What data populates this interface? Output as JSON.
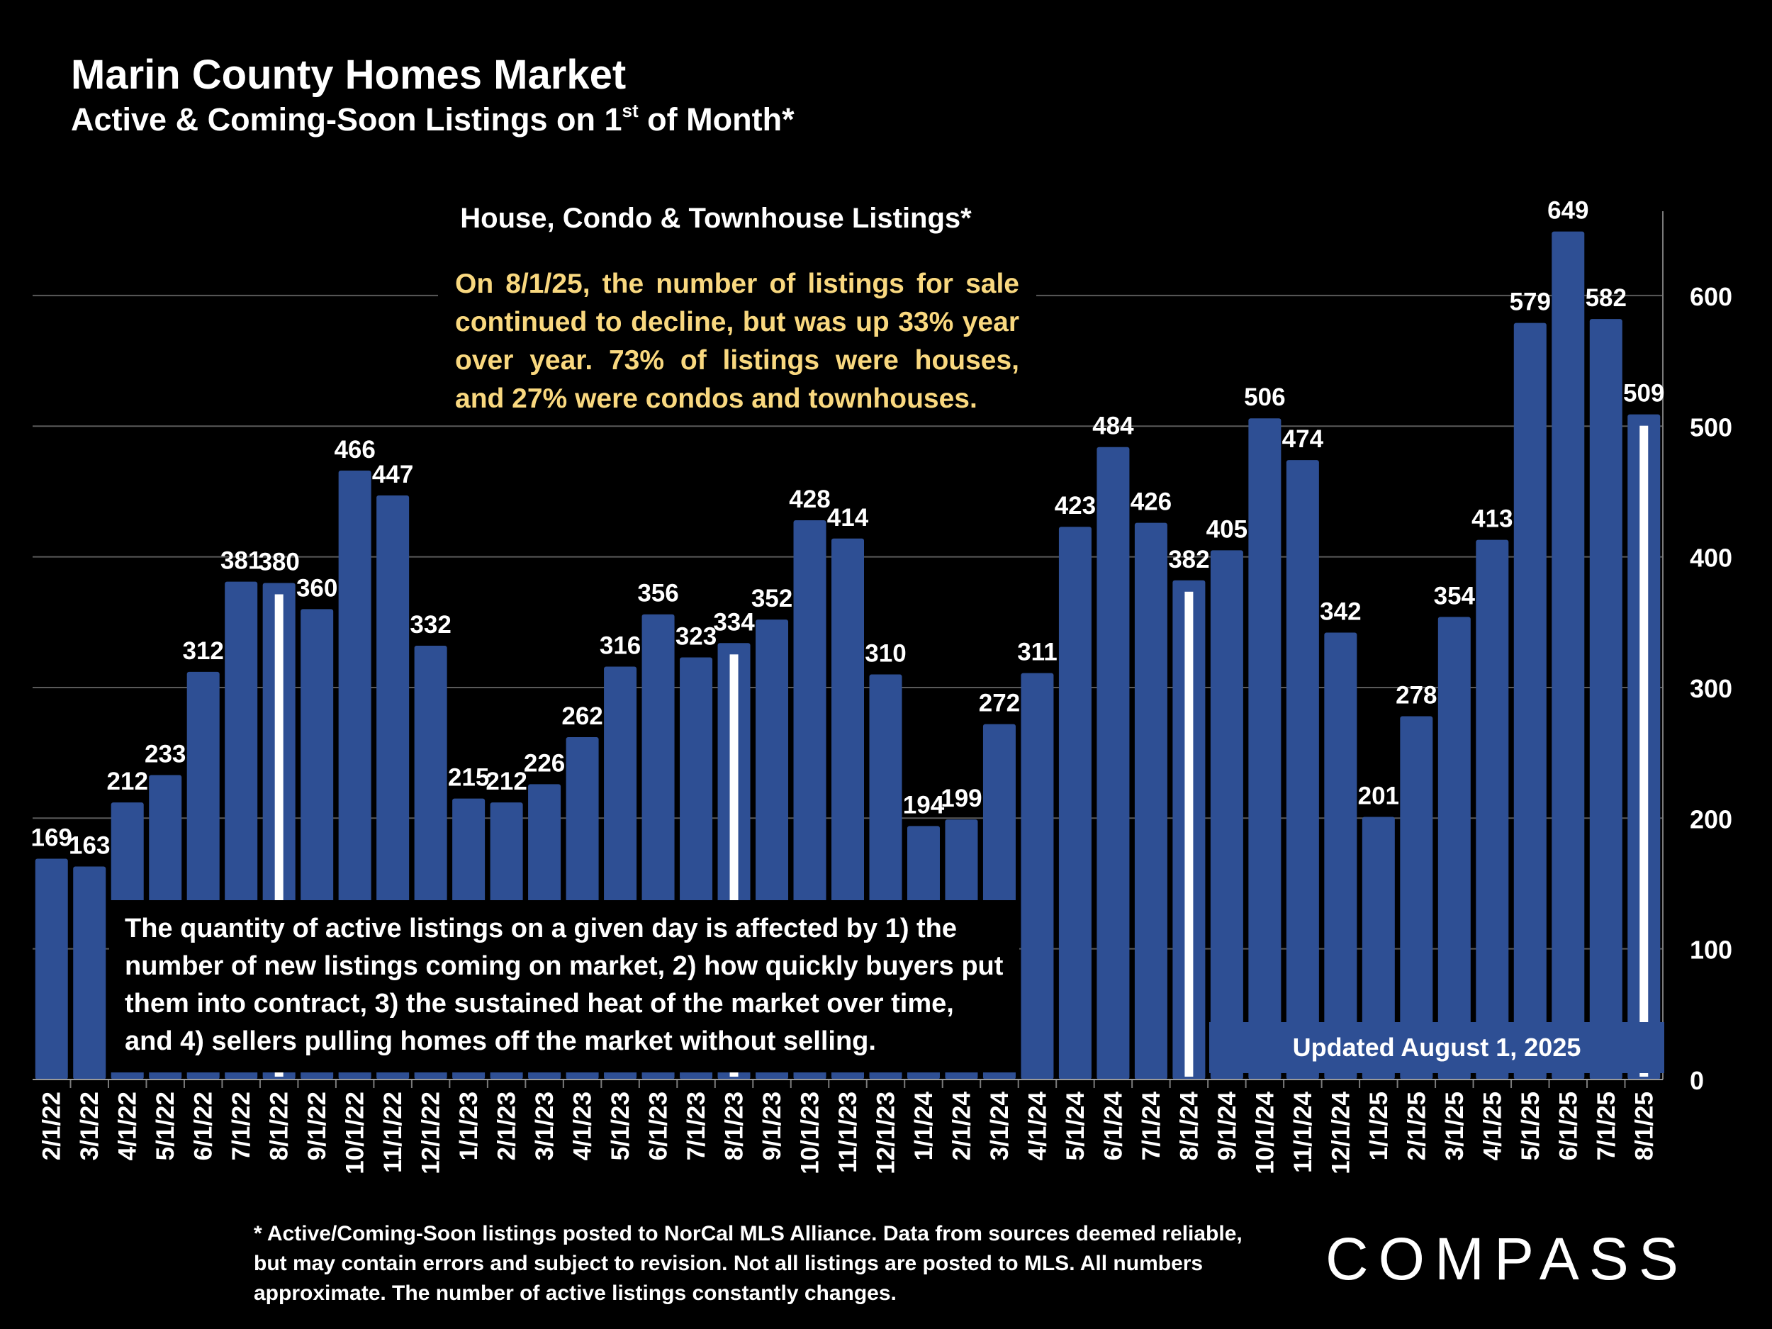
{
  "header": {
    "title": "Marin County Homes Market",
    "subtitle_pre": "Active & Coming-Soon Listings on 1",
    "subtitle_sup": "st",
    "subtitle_post": " of Month*"
  },
  "chart_data": {
    "type": "bar",
    "title": "House, Condo & Townhouse Listings*",
    "categories": [
      "2/1/22",
      "3/1/22",
      "4/1/22",
      "5/1/22",
      "6/1/22",
      "7/1/22",
      "8/1/22",
      "9/1/22",
      "10/1/22",
      "11/1/22",
      "12/1/22",
      "1/1/23",
      "2/1/23",
      "3/1/23",
      "4/1/23",
      "5/1/23",
      "6/1/23",
      "7/1/23",
      "8/1/23",
      "9/1/23",
      "10/1/23",
      "11/1/23",
      "12/1/23",
      "1/1/24",
      "2/1/24",
      "3/1/24",
      "4/1/24",
      "5/1/24",
      "6/1/24",
      "7/1/24",
      "8/1/24",
      "9/1/24",
      "10/1/24",
      "11/1/24",
      "12/1/24",
      "1/1/25",
      "2/1/25",
      "3/1/25",
      "4/1/25",
      "5/1/25",
      "6/1/25",
      "7/1/25",
      "8/1/25"
    ],
    "values": [
      169,
      163,
      212,
      233,
      312,
      381,
      380,
      360,
      466,
      447,
      332,
      215,
      212,
      226,
      262,
      316,
      356,
      323,
      334,
      352,
      428,
      414,
      310,
      194,
      199,
      272,
      311,
      423,
      484,
      426,
      382,
      405,
      506,
      474,
      342,
      201,
      278,
      354,
      413,
      579,
      649,
      582,
      509
    ],
    "data_labels": [
      "169",
      "163",
      "212",
      "233",
      "312",
      "381",
      "380",
      "360",
      "466",
      "447",
      "332",
      "215",
      "212",
      "226",
      "262",
      "316",
      "356",
      "323",
      "334",
      "352",
      "428",
      "414",
      "310",
      "194",
      "199",
      "272",
      "311",
      "423",
      "484",
      "426",
      "382",
      "405",
      "506",
      "474",
      "342",
      "201",
      "278",
      "354",
      "413",
      "579",
      "649",
      "582",
      "509"
    ],
    "highlighted_categories": [
      "8/1/22",
      "8/1/23",
      "8/1/24",
      "8/1/25"
    ],
    "y_ticks": [
      "0",
      "100",
      "200",
      "300",
      "400",
      "500",
      "600"
    ],
    "ylim": [
      0,
      660
    ],
    "y_axis_side": "right",
    "grid": true,
    "bar_color": "#2e4f94",
    "highlight_color": "#ffffff",
    "background_color": "#000000",
    "annotation_color": "#f9d87f"
  },
  "annotations": {
    "market_note": "On 8/1/25, the number of listings for sale continued to decline, but was up 33% year over year. 73% of listings were houses, and 27% were condos and townhouses.",
    "explanation": "The quantity of active listings on a given day is affected by 1) the number of new listings coming on market, 2) how quickly buyers put them into contract, 3) the sustained heat of the market over time, and 4) sellers pulling homes off the market without selling.",
    "updated": "Updated August 1, 2025"
  },
  "footer": {
    "footnote": "* Active/Coming-Soon listings posted to NorCal MLS Alliance.  Data from sources deemed reliable, but may contain errors and subject to revision.  Not all listings are posted to MLS. All numbers approximate. The number of active listings constantly changes.",
    "logo": "COMPASS"
  }
}
